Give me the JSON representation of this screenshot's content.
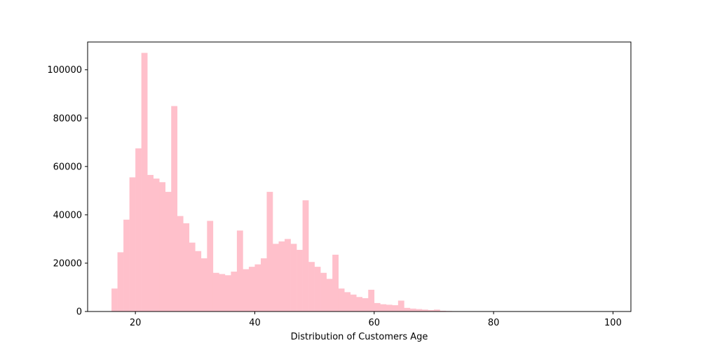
{
  "chart_data": {
    "type": "bar",
    "xlabel": "Distribution of Customers Age",
    "ylabel": "",
    "title": "",
    "xlim": [
      12,
      103
    ],
    "ylim": [
      0,
      111500
    ],
    "grid": false,
    "bar_color": "#ffc0cb",
    "xticks": [
      20,
      40,
      60,
      80,
      100
    ],
    "yticks": [
      0,
      20000,
      40000,
      60000,
      80000,
      100000
    ],
    "bin_start": 16,
    "bin_width": 1,
    "values": [
      9500,
      24500,
      38000,
      55500,
      67500,
      107000,
      56500,
      55000,
      53500,
      49500,
      85000,
      39500,
      36500,
      28500,
      25000,
      22000,
      37500,
      16000,
      15500,
      15000,
      16500,
      33500,
      17500,
      18500,
      19500,
      22000,
      49500,
      28000,
      29000,
      30000,
      28000,
      25500,
      46000,
      20500,
      18500,
      16000,
      13500,
      23500,
      9500,
      8000,
      7000,
      6000,
      5500,
      9000,
      3500,
      3000,
      2800,
      2600,
      4500,
      1500,
      1200,
      1000,
      800,
      600,
      800,
      300,
      200,
      150,
      100,
      80,
      60,
      50,
      40,
      30,
      25,
      20,
      15,
      12,
      10,
      8,
      6,
      5,
      4,
      3,
      3,
      2,
      2,
      2,
      1,
      1,
      1,
      1,
      1,
      1
    ]
  }
}
